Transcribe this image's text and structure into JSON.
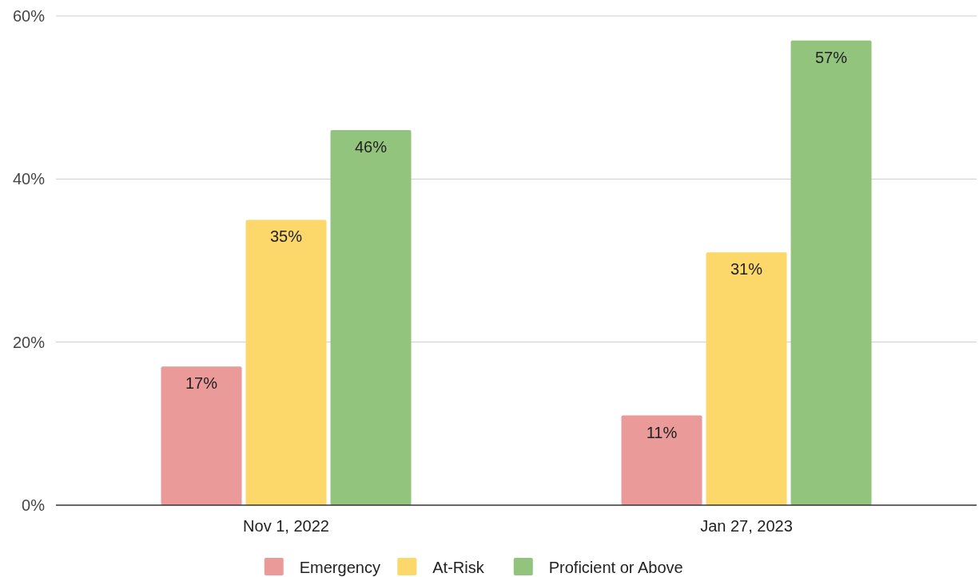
{
  "chart_data": {
    "type": "bar",
    "categories": [
      "Nov 1, 2022",
      "Jan 27, 2023"
    ],
    "series": [
      {
        "name": "Emergency",
        "color": "#e99a99",
        "values": [
          17,
          11
        ],
        "value_labels": [
          "17%",
          "11%"
        ]
      },
      {
        "name": "At-Risk",
        "color": "#fcd769",
        "values": [
          35,
          31
        ],
        "value_labels": [
          "35%",
          "31%"
        ]
      },
      {
        "name": "Proficient or Above",
        "color": "#93c47d",
        "values": [
          46,
          57
        ],
        "value_labels": [
          "46%",
          "57%"
        ]
      }
    ],
    "ylim": [
      0,
      60
    ],
    "yticks": [
      {
        "value": 0,
        "label": "0%"
      },
      {
        "value": 20,
        "label": "20%"
      },
      {
        "value": 40,
        "label": "40%"
      },
      {
        "value": 60,
        "label": "60%"
      }
    ],
    "grid": "y",
    "legend": "bottom"
  }
}
